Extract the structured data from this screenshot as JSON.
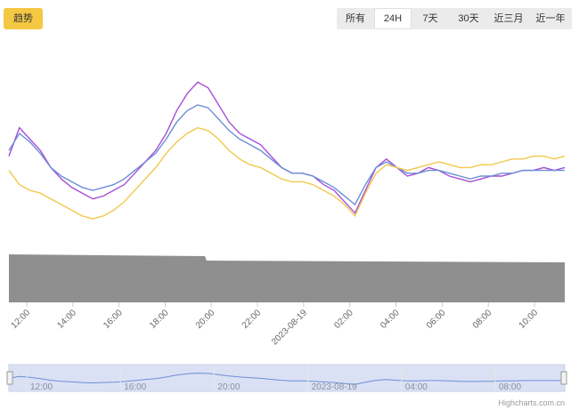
{
  "toolbar": {
    "trend_label": "趋势",
    "ranges": [
      "所有",
      "24H",
      "7天",
      "30天",
      "近三月",
      "近一年"
    ],
    "active_range": "24H"
  },
  "colors": {
    "purple": "#a64fd8",
    "blue": "#6b8fd6",
    "yellow": "#f2c94c",
    "volume": "#8f8f8f",
    "navigator_fill": "#dbe1f4",
    "navigator_line": "#6b8fd6",
    "accent": "#f5c843"
  },
  "chart_data": {
    "type": "line",
    "x_axis": {
      "ticks": [
        "12:00",
        "14:00",
        "16:00",
        "18:00",
        "20:00",
        "22:00",
        "2023-08-19",
        "02:00",
        "04:00",
        "06:00",
        "08:00",
        "10:00"
      ]
    },
    "series": [
      {
        "color": "purple",
        "values": [
          62,
          72,
          68,
          64,
          58,
          54,
          51,
          49,
          47,
          48,
          50,
          52,
          56,
          60,
          64,
          70,
          78,
          84,
          88,
          86,
          80,
          74,
          70,
          68,
          66,
          62,
          58,
          56,
          56,
          55,
          52,
          50,
          46,
          42,
          50,
          58,
          61,
          58,
          55,
          56,
          58,
          57,
          55,
          54,
          53,
          54,
          55,
          55,
          56,
          57,
          57,
          58,
          57,
          58
        ]
      },
      {
        "color": "blue",
        "values": [
          64,
          70,
          67,
          63,
          58,
          55,
          53,
          51,
          50,
          51,
          52,
          54,
          57,
          60,
          63,
          68,
          74,
          78,
          80,
          79,
          75,
          71,
          68,
          66,
          64,
          61,
          58,
          56,
          56,
          55,
          53,
          51,
          48,
          45,
          52,
          58,
          60,
          58,
          56,
          56,
          57,
          57,
          56,
          55,
          54,
          55,
          55,
          56,
          56,
          57,
          57,
          57,
          57,
          57
        ]
      },
      {
        "color": "yellow",
        "values": [
          57,
          52,
          50,
          49,
          47,
          45,
          43,
          41,
          40,
          41,
          43,
          46,
          50,
          54,
          58,
          63,
          67,
          70,
          72,
          71,
          68,
          64,
          61,
          59,
          58,
          56,
          54,
          53,
          53,
          52,
          50,
          48,
          45,
          41,
          49,
          56,
          59,
          58,
          57,
          58,
          59,
          60,
          59,
          58,
          58,
          59,
          59,
          60,
          61,
          61,
          62,
          62,
          61,
          62
        ]
      }
    ],
    "volume": {
      "color": "volume"
    },
    "navigator": {
      "ticks": [
        "12:00",
        "16:00",
        "20:00",
        "2023-08-19",
        "04:00",
        "08:00"
      ]
    },
    "credits": "Highcharts.com.cn"
  }
}
